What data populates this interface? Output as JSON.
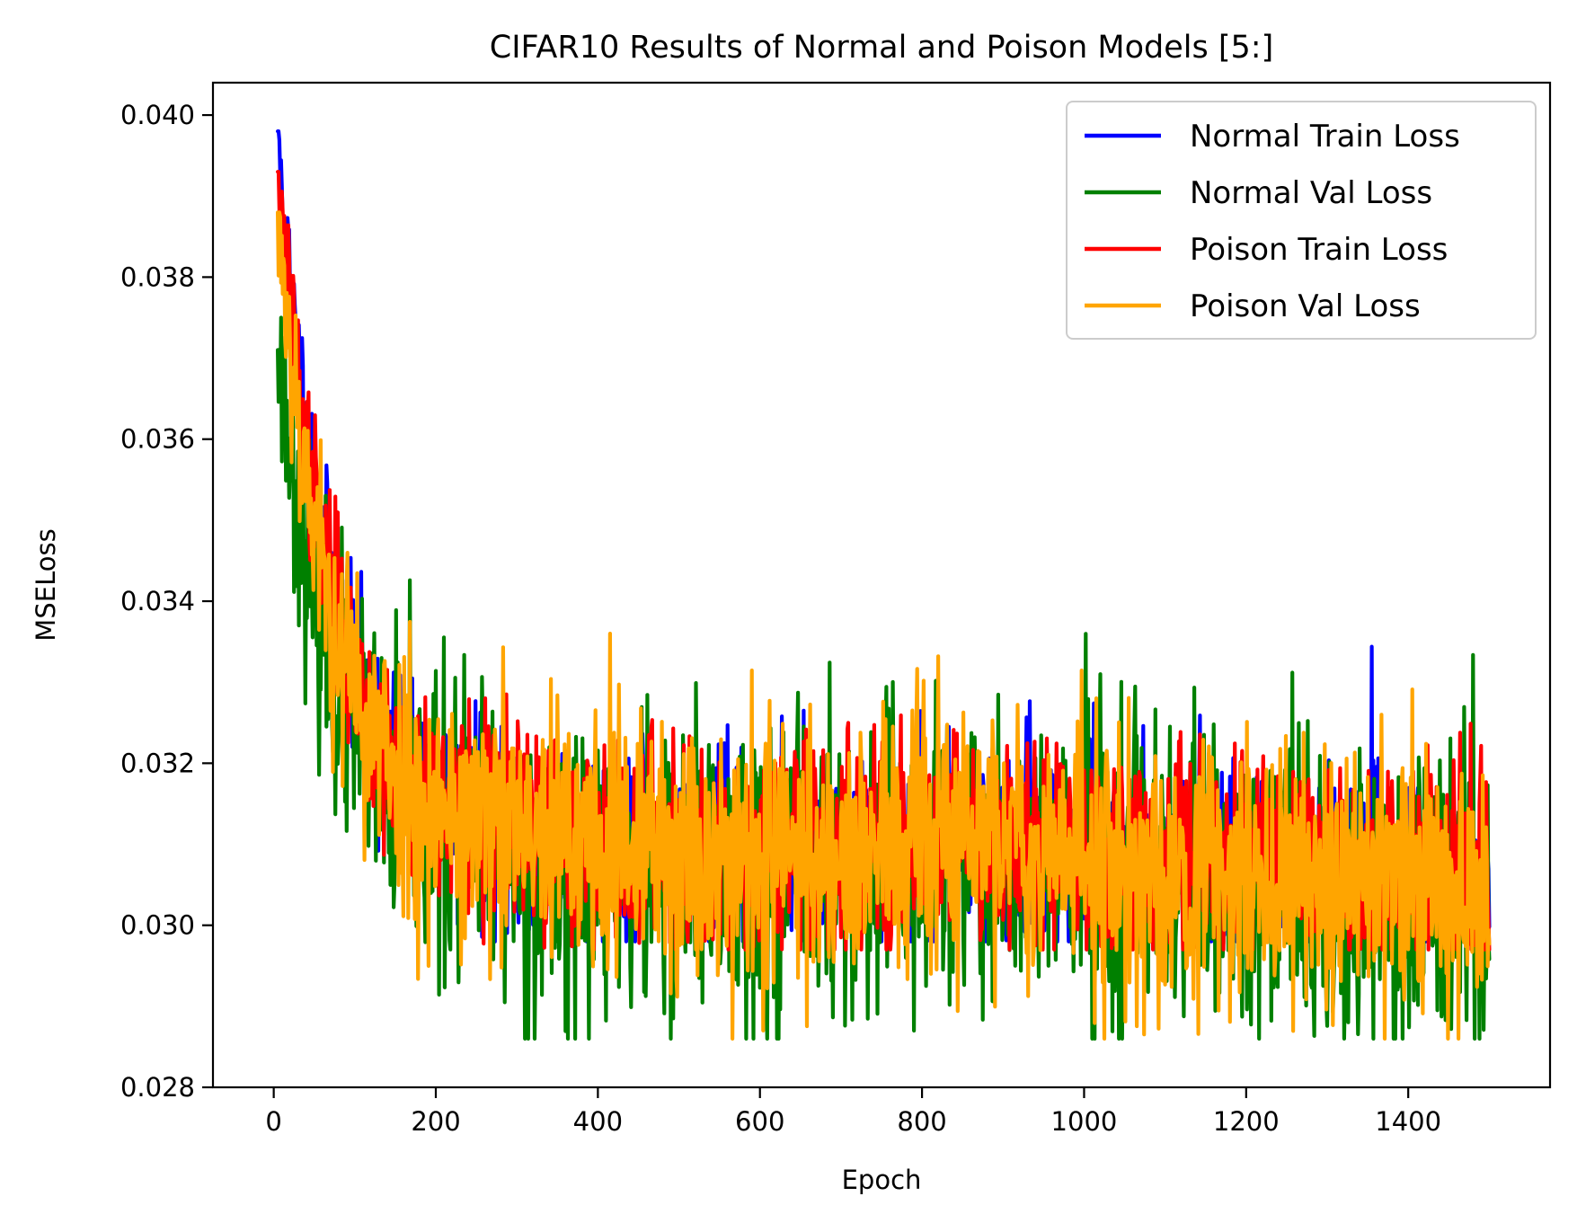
{
  "chart_data": {
    "type": "line",
    "title": "CIFAR10 Results of Normal and Poison Models [5:]",
    "xlabel": "Epoch",
    "ylabel": "MSELoss",
    "xlim": [
      -75,
      1575
    ],
    "ylim": [
      0.028,
      0.0404
    ],
    "x_ticks": [
      0,
      200,
      400,
      600,
      800,
      1000,
      1200,
      1400
    ],
    "x_tick_labels": [
      "0",
      "200",
      "400",
      "600",
      "800",
      "1000",
      "1200",
      "1400"
    ],
    "y_ticks": [
      0.028,
      0.03,
      0.032,
      0.034,
      0.036,
      0.038,
      0.04
    ],
    "y_tick_labels": [
      "0.028",
      "0.030",
      "0.032",
      "0.034",
      "0.036",
      "0.038",
      "0.040"
    ],
    "grid": false,
    "legend_position": "top-right",
    "x_range_plotted": [
      5,
      1500
    ],
    "series": [
      {
        "name": "Normal Train Loss",
        "color": "#0000ff",
        "start_value": 0.0398,
        "plateau_value": 0.031,
        "late_value": 0.0306,
        "noise_amplitude": 0.0011,
        "observed_min": 0.0298,
        "observed_max": 0.0398,
        "seed": 11
      },
      {
        "name": "Normal Val Loss",
        "color": "#008000",
        "start_value": 0.0371,
        "plateau_value": 0.0308,
        "late_value": 0.0303,
        "noise_amplitude": 0.0017,
        "observed_min": 0.0286,
        "observed_max": 0.0375,
        "seed": 23
      },
      {
        "name": "Poison Train Loss",
        "color": "#ff0000",
        "start_value": 0.0393,
        "plateau_value": 0.0311,
        "late_value": 0.0306,
        "noise_amplitude": 0.0012,
        "observed_min": 0.0297,
        "observed_max": 0.0393,
        "seed": 37
      },
      {
        "name": "Poison Val Loss",
        "color": "#ffa500",
        "start_value": 0.0388,
        "plateau_value": 0.031,
        "late_value": 0.0305,
        "noise_amplitude": 0.0015,
        "observed_min": 0.0286,
        "observed_max": 0.0388,
        "seed": 53
      }
    ],
    "notable_points": [
      {
        "series": "Normal Train Loss",
        "x": 5,
        "y": 0.0398
      },
      {
        "series": "Poison Train Loss",
        "x": 5,
        "y": 0.0393
      },
      {
        "series": "Poison Val Loss",
        "x": 7,
        "y": 0.0388
      },
      {
        "series": "Poison Train Loss",
        "x": 78,
        "y": 0.0351
      },
      {
        "series": "Poison Val Loss",
        "x": 415,
        "y": 0.0336
      },
      {
        "series": "Normal Val Loss",
        "x": 790,
        "y": 0.0287
      },
      {
        "series": "Normal Val Loss",
        "x": 1047,
        "y": 0.0286
      },
      {
        "series": "Normal Val Loss",
        "x": 1020,
        "y": 0.0331
      },
      {
        "series": "Poison Val Loss",
        "x": 1462,
        "y": 0.0286
      },
      {
        "series": "Poison Val Loss",
        "x": 1367,
        "y": 0.0326
      }
    ]
  }
}
